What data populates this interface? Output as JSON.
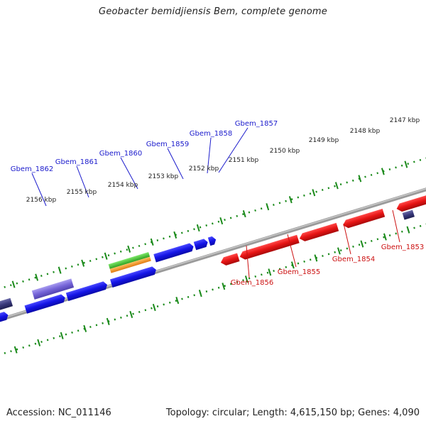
{
  "title": "Geobacter bemidjiensis Bem, complete genome",
  "footer": {
    "accession": "Accession: NC_011146",
    "summary": "Topology: circular; Length: 4,615,150 bp; Genes: 4,090"
  },
  "scale_ticks": [
    "2147 kbp",
    "2148 kbp",
    "2149 kbp",
    "2150 kbp",
    "2151 kbp",
    "2152 kbp",
    "2153 kbp",
    "2154 kbp",
    "2155 kbp",
    "2156 kbp"
  ],
  "forward_gene_labels": [
    "Gbem_1857",
    "Gbem_1858",
    "Gbem_1859",
    "Gbem_1860",
    "Gbem_1861",
    "Gbem_1862"
  ],
  "reverse_gene_labels": [
    "Gbem_1853",
    "Gbem_1854",
    "Gbem_1855",
    "Gbem_1856"
  ],
  "colors": {
    "forward_gene": "#1a1aee",
    "reverse_gene": "#ee1111",
    "ticks": "#1a8a1a",
    "backbone": "#888888",
    "rrna_green": "#44cc33",
    "rrna_orange": "#f59a20",
    "pseudo_purple": "#7a6ad8",
    "dark_navy": "#3a3a7a"
  }
}
